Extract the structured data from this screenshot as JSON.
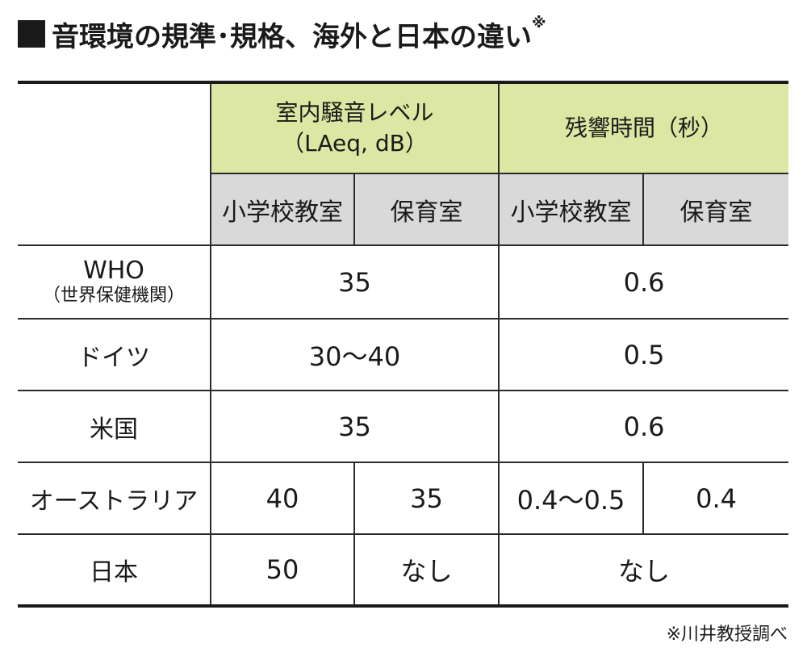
{
  "title": {
    "text": "音環境の規準･規格、海外と日本の違い",
    "note_mark": "※"
  },
  "table": {
    "groups": [
      {
        "label_line1": "室内騒音レベル",
        "label_line2": "（LAeq, dB）"
      },
      {
        "label_line1": "残響時間（秒）",
        "label_line2": ""
      }
    ],
    "subheaders": [
      "小学校教室",
      "保育室",
      "小学校教室",
      "保育室"
    ],
    "rows": [
      {
        "label": "WHO",
        "sublabel": "（世界保健機関）",
        "noise": "35",
        "reverb": "0.6"
      },
      {
        "label": "ドイツ",
        "noise": "30〜40",
        "reverb": "0.5"
      },
      {
        "label": "米国",
        "noise": "35",
        "reverb": "0.6"
      },
      {
        "label": "オーストラリア",
        "noise_school": "40",
        "noise_nursery": "35",
        "reverb_school": "0.4〜0.5",
        "reverb_nursery": "0.4"
      },
      {
        "label": "日本",
        "noise_school": "50",
        "noise_nursery": "なし",
        "reverb": "なし"
      }
    ]
  },
  "footnote": "※川井教授調べ",
  "colors": {
    "group_header_bg": "#dbe7a2",
    "sub_header_bg": "#d9d9d9"
  }
}
